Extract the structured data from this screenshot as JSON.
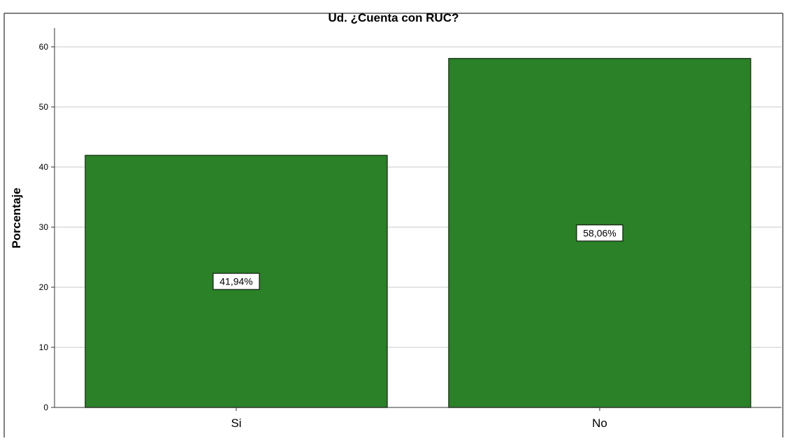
{
  "chart_data": {
    "type": "bar",
    "title": "Ud. ¿Cuenta con RUC?",
    "xlabel": "",
    "ylabel": "Porcentaje",
    "categories": [
      "Si",
      "No"
    ],
    "values": [
      41.94,
      58.06
    ],
    "data_labels": [
      "41,94%",
      "58,06%"
    ],
    "yticks": [
      "0",
      "10",
      "20",
      "30",
      "40",
      "50",
      "60"
    ],
    "ylim": [
      0,
      63
    ],
    "grid": true,
    "legend": "none"
  },
  "colors": {
    "bar_fill": "#2a8127",
    "bar_stroke": "#1f3f1c",
    "grid": "#c8c8c8",
    "axis": "#333333",
    "frame": "#000000",
    "text": "#000000"
  }
}
